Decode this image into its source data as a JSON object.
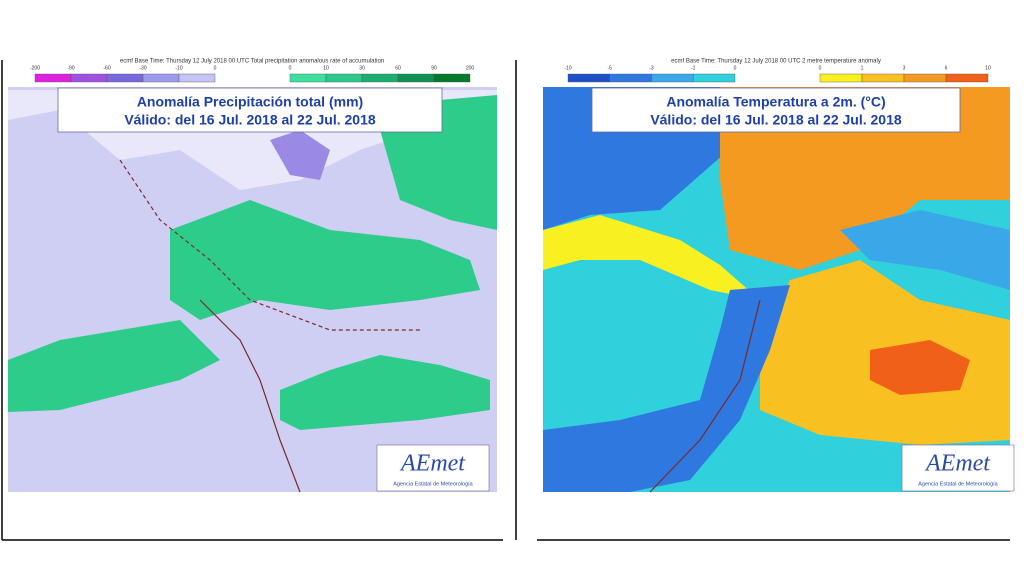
{
  "panels": [
    {
      "header": "ecmf  Base Time: Thursday 12 July 2018 00 UTC  Total precipitation anomalous rate of accumulation",
      "colorbars": [
        {
          "ticks": [
            -200,
            -90,
            -60,
            -30,
            -10,
            0
          ],
          "colors": [
            "#e020e0",
            "#a050e0",
            "#7868e0",
            "#9c9cee",
            "#c4c4f6"
          ]
        },
        {
          "ticks": [
            0,
            10,
            30,
            60,
            90,
            200
          ],
          "colors": [
            "#3ee0a0",
            "#2cc88c",
            "#1cae70",
            "#0e9050",
            "#047a2c"
          ]
        }
      ],
      "title": "Anomalía Precipitación total (mm)",
      "subtitle": "Válido: del 16 Jul. 2018 al 22 Jul. 2018",
      "logo": "AEmet",
      "logo_caption": "Agencia Estatal de Meteorología"
    },
    {
      "header": "ecmf  Base Time: Thursday 12 July 2018 00 UTC  2 metre temperature anomaly",
      "colorbars": [
        {
          "ticks": [
            -10,
            -5,
            -3,
            -1,
            0
          ],
          "colors": [
            "#1e4ec8",
            "#2e78e0",
            "#3aa8e8",
            "#30d0dc"
          ]
        },
        {
          "ticks": [
            0,
            1,
            3,
            6,
            10
          ],
          "colors": [
            "#f8f020",
            "#f8c020",
            "#f59a20",
            "#f06018"
          ]
        }
      ],
      "title": "Anomalía Temperatura a 2m. (°C)",
      "subtitle": "Válido: del 16 Jul. 2018 al 22 Jul. 2018",
      "logo": "AEmet",
      "logo_caption": "Agencia Estatal de Meteorología"
    }
  ]
}
